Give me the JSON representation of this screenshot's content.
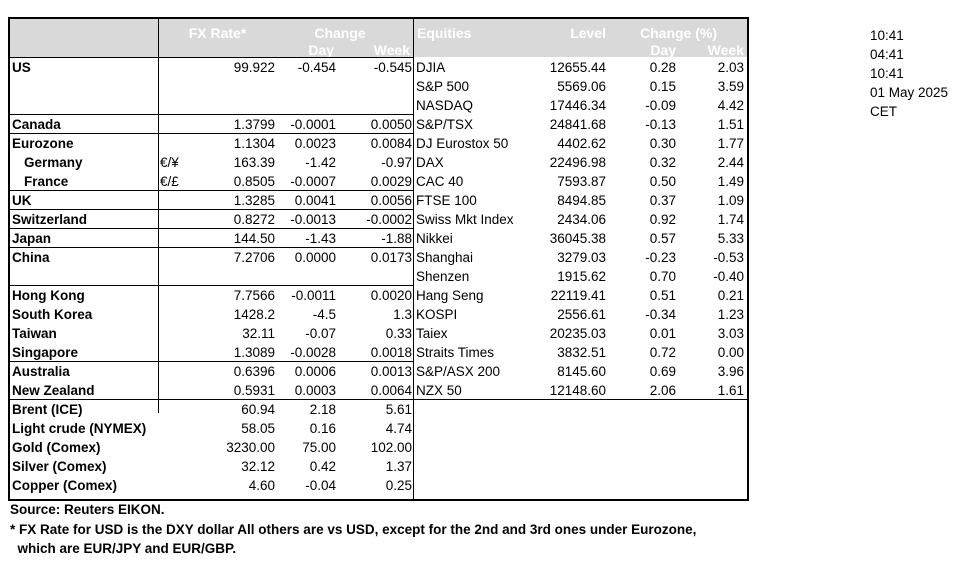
{
  "header": {
    "fx_rate": "FX Rate*",
    "change": "Change",
    "day": "Day",
    "week": "Week",
    "equities": "Equities",
    "level": "Level",
    "change_pct": "Change (%)",
    "eq_day": "Day",
    "eq_week": "Week"
  },
  "rows": [
    {
      "country": "US",
      "sym": "",
      "fx": "99.922",
      "day": "-0.454",
      "week": "-0.545",
      "idx": "DJIA",
      "level": "12655.44",
      "eday": "0.28",
      "eweek": "2.03",
      "bold": true,
      "indent": false
    },
    {
      "country": "",
      "sym": "",
      "fx": "",
      "day": "",
      "week": "",
      "idx": "S&P 500",
      "level": "5569.06",
      "eday": "0.15",
      "eweek": "3.59",
      "bold": true,
      "indent": false
    },
    {
      "country": "",
      "sym": "",
      "fx": "",
      "day": "",
      "week": "",
      "idx": "NASDAQ",
      "level": "17446.34",
      "eday": "-0.09",
      "eweek": "4.42",
      "bold": true,
      "indent": false
    },
    {
      "country": "Canada",
      "sym": "",
      "fx": "1.3799",
      "day": "-0.0001",
      "week": "0.0050",
      "idx": "S&P/TSX",
      "level": "24841.68",
      "eday": "-0.13",
      "eweek": "1.51",
      "bold": true,
      "indent": false
    },
    {
      "country": "Eurozone",
      "sym": "",
      "fx": "1.1304",
      "day": "0.0023",
      "week": "0.0084",
      "idx": "DJ Eurostox 50",
      "level": "4402.62",
      "eday": "0.30",
      "eweek": "1.77",
      "bold": true,
      "indent": false
    },
    {
      "country": "Germany",
      "sym": "€/¥",
      "fx": "163.39",
      "day": "-1.42",
      "week": "-0.97",
      "idx": "DAX",
      "level": "22496.98",
      "eday": "0.32",
      "eweek": "2.44",
      "bold": true,
      "indent": true
    },
    {
      "country": "France",
      "sym": "€/£",
      "fx": "0.8505",
      "day": "-0.0007",
      "week": "0.0029",
      "idx": "CAC 40",
      "level": "7593.87",
      "eday": "0.50",
      "eweek": "1.49",
      "bold": true,
      "indent": true
    },
    {
      "country": "UK",
      "sym": "",
      "fx": "1.3285",
      "day": "0.0041",
      "week": "0.0056",
      "idx": "FTSE 100",
      "level": "8494.85",
      "eday": "0.37",
      "eweek": "1.09",
      "bold": true,
      "indent": false
    },
    {
      "country": "Switzerland",
      "sym": "",
      "fx": "0.8272",
      "day": "-0.0013",
      "week": "-0.0002",
      "idx": "Swiss Mkt Index",
      "level": "2434.06",
      "eday": "0.92",
      "eweek": "1.74",
      "bold": true,
      "indent": false
    },
    {
      "country": "Japan",
      "sym": "",
      "fx": "144.50",
      "day": "-1.43",
      "week": "-1.88",
      "idx": "Nikkei",
      "level": "36045.38",
      "eday": "0.57",
      "eweek": "5.33",
      "bold": true,
      "indent": false
    },
    {
      "country": "China",
      "sym": "",
      "fx": "7.2706",
      "day": "0.0000",
      "week": "0.0173",
      "idx": "Shanghai",
      "level": "3279.03",
      "eday": "-0.23",
      "eweek": "-0.53",
      "bold": true,
      "indent": false
    },
    {
      "country": "",
      "sym": "",
      "fx": "",
      "day": "",
      "week": "",
      "idx": "Shenzen",
      "level": "1915.62",
      "eday": "0.70",
      "eweek": "-0.40",
      "bold": true,
      "indent": false
    },
    {
      "country": "Hong Kong",
      "sym": "",
      "fx": "7.7566",
      "day": "-0.0011",
      "week": "0.0020",
      "idx": "Hang Seng",
      "level": "22119.41",
      "eday": "0.51",
      "eweek": "0.21",
      "bold": true,
      "indent": false
    },
    {
      "country": "South Korea",
      "sym": "",
      "fx": "1428.2",
      "day": "-4.5",
      "week": "1.3",
      "idx": "KOSPI",
      "level": "2556.61",
      "eday": "-0.34",
      "eweek": "1.23",
      "bold": true,
      "indent": false
    },
    {
      "country": "Taiwan",
      "sym": "",
      "fx": "32.11",
      "day": "-0.07",
      "week": "0.33",
      "idx": "Taiex",
      "level": "20235.03",
      "eday": "0.01",
      "eweek": "3.03",
      "bold": true,
      "indent": false
    },
    {
      "country": "Singapore",
      "sym": "",
      "fx": "1.3089",
      "day": "-0.0028",
      "week": "0.0018",
      "idx": "Straits Times",
      "level": "3832.51",
      "eday": "0.72",
      "eweek": "0.00",
      "bold": true,
      "indent": false
    },
    {
      "country": "Australia",
      "sym": "",
      "fx": "0.6396",
      "day": "0.0006",
      "week": "0.0013",
      "idx": "S&P/ASX  200",
      "level": "8145.60",
      "eday": "0.69",
      "eweek": "3.96",
      "bold": true,
      "indent": false
    },
    {
      "country": "New Zealand",
      "sym": "",
      "fx": "0.5931",
      "day": "0.0003",
      "week": "0.0064",
      "idx": "NZX 50",
      "level": "12148.60",
      "eday": "2.06",
      "eweek": "1.61",
      "bold": true,
      "indent": false
    },
    {
      "country": "Brent (ICE)",
      "sym": "",
      "fx": "60.94",
      "day": "2.18",
      "week": "5.61",
      "idx": "",
      "level": "",
      "eday": "",
      "eweek": "",
      "bold": true,
      "indent": false
    },
    {
      "country": "Light crude (NYMEX)",
      "sym": "",
      "fx": "58.05",
      "day": "0.16",
      "week": "4.74",
      "idx": "",
      "level": "",
      "eday": "",
      "eweek": "",
      "bold": true,
      "indent": false
    },
    {
      "country": "Gold (Comex)",
      "sym": "",
      "fx": "3230.00",
      "day": "75.00",
      "week": "102.00",
      "idx": "",
      "level": "",
      "eday": "",
      "eweek": "",
      "bold": true,
      "indent": false
    },
    {
      "country": "Silver (Comex)",
      "sym": "",
      "fx": "32.12",
      "day": "0.42",
      "week": "1.37",
      "idx": "",
      "level": "",
      "eday": "",
      "eweek": "",
      "bold": true,
      "indent": false
    },
    {
      "country": "Copper (Comex)",
      "sym": "",
      "fx": "4.60",
      "day": "-0.04",
      "week": "0.25",
      "idx": "",
      "level": "",
      "eday": "",
      "eweek": "",
      "bold": true,
      "indent": false
    }
  ],
  "times": [
    "10:41",
    "04:41",
    "10:41",
    "01 May 2025",
    "CET"
  ],
  "notes": {
    "source": "Source:  Reuters EIKON.",
    "footnote1": "* FX Rate for USD is the DXY dollar  All others are vs USD, except for the 2nd and 3rd ones under Eurozone,",
    "footnote2": "  which are EUR/JPY and EUR/GBP."
  },
  "colors": {
    "header_bg": "#d9d9d9",
    "header_text": "#ffffff",
    "border": "#000000"
  }
}
